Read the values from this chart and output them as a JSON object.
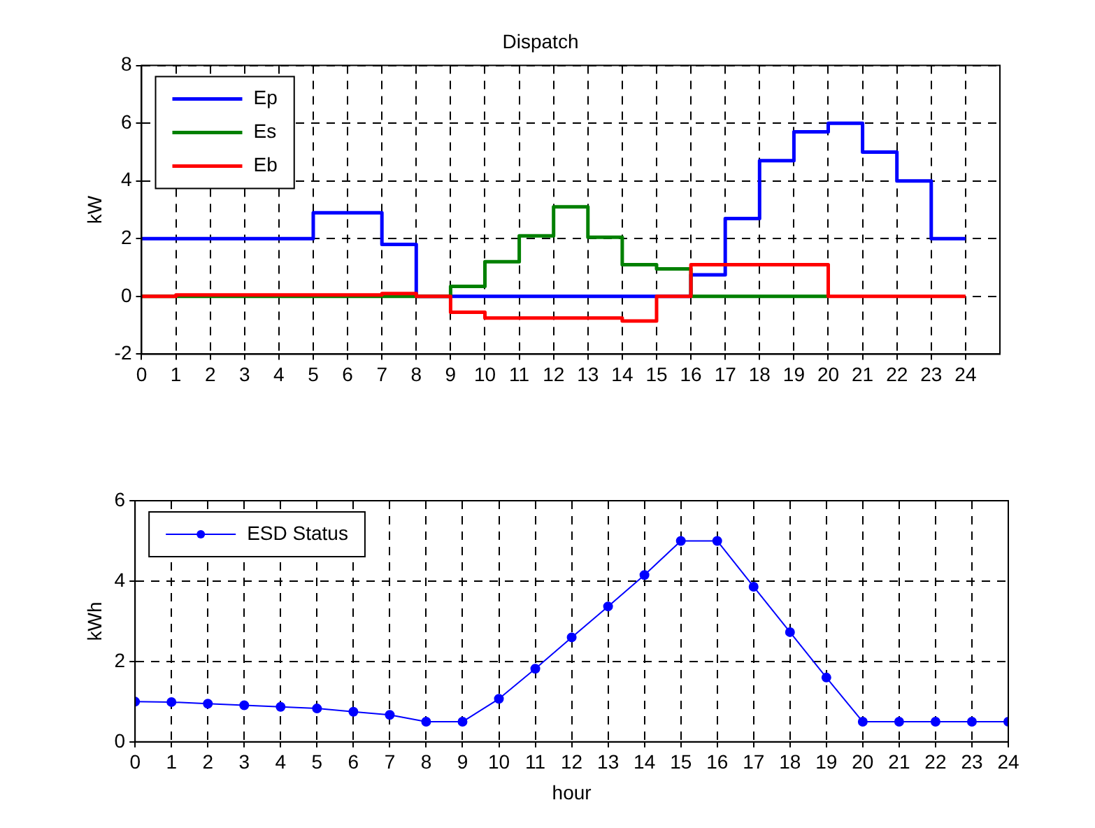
{
  "chart_data": [
    {
      "type": "step",
      "title": "Dispatch",
      "ylabel": "kW",
      "x": [
        0,
        1,
        2,
        3,
        4,
        5,
        6,
        7,
        8,
        9,
        10,
        11,
        12,
        13,
        14,
        15,
        16,
        17,
        18,
        19,
        20,
        21,
        22,
        23,
        24
      ],
      "xlim": [
        0,
        25
      ],
      "xticks": [
        0,
        1,
        2,
        3,
        4,
        5,
        6,
        7,
        8,
        9,
        10,
        11,
        12,
        13,
        14,
        15,
        16,
        17,
        18,
        19,
        20,
        21,
        22,
        23,
        24
      ],
      "ylim": [
        -2,
        8
      ],
      "yticks": [
        -2,
        0,
        2,
        4,
        6,
        8
      ],
      "grid": true,
      "legend": "top left",
      "line_style": "solid",
      "series": [
        {
          "name": "Ep",
          "color": "#0000ff",
          "values": [
            2,
            2,
            2,
            2,
            2,
            2.9,
            2.9,
            1.8,
            0,
            0,
            0,
            0,
            0,
            0,
            0,
            0,
            0.75,
            2.7,
            4.7,
            5.7,
            6,
            5,
            4,
            2,
            2
          ]
        },
        {
          "name": "Es",
          "color": "#008000",
          "values": [
            0,
            0,
            0,
            0,
            0,
            0,
            0,
            0,
            0,
            0.35,
            1.2,
            2.1,
            3.1,
            2.05,
            1.1,
            0.95,
            0,
            0,
            0,
            0,
            0,
            null,
            null,
            null,
            null
          ]
        },
        {
          "name": "Eb",
          "color": "#ff0000",
          "values": [
            0,
            0.05,
            0.05,
            0.05,
            0.05,
            0.05,
            0.05,
            0.1,
            0,
            -0.55,
            -0.75,
            -0.75,
            -0.75,
            -0.75,
            -0.85,
            0,
            1.1,
            1.1,
            1.1,
            1.1,
            0,
            0,
            0,
            0,
            0
          ]
        }
      ]
    },
    {
      "type": "line",
      "ylabel": "kWh",
      "xlabel": "hour",
      "x": [
        0,
        1,
        2,
        3,
        4,
        5,
        6,
        7,
        8,
        9,
        10,
        11,
        12,
        13,
        14,
        15,
        16,
        17,
        18,
        19,
        20,
        21,
        22,
        23,
        24
      ],
      "xlim": [
        0,
        24
      ],
      "xticks": [
        0,
        1,
        2,
        3,
        4,
        5,
        6,
        7,
        8,
        9,
        10,
        11,
        12,
        13,
        14,
        15,
        16,
        17,
        18,
        19,
        20,
        21,
        22,
        23,
        24
      ],
      "ylim": [
        0,
        6
      ],
      "yticks": [
        0,
        2,
        4,
        6
      ],
      "grid": true,
      "legend": "top left",
      "marker": "circle",
      "line_style": "solid",
      "series": [
        {
          "name": "ESD Status",
          "color": "#0000ff",
          "values": [
            1,
            0.99,
            0.95,
            0.91,
            0.87,
            0.83,
            0.75,
            0.67,
            0.5,
            0.5,
            1.07,
            1.82,
            2.6,
            3.37,
            4.15,
            5,
            5,
            3.86,
            2.73,
            1.6,
            0.5,
            0.5,
            0.5,
            0.5,
            0.5
          ]
        }
      ]
    }
  ]
}
